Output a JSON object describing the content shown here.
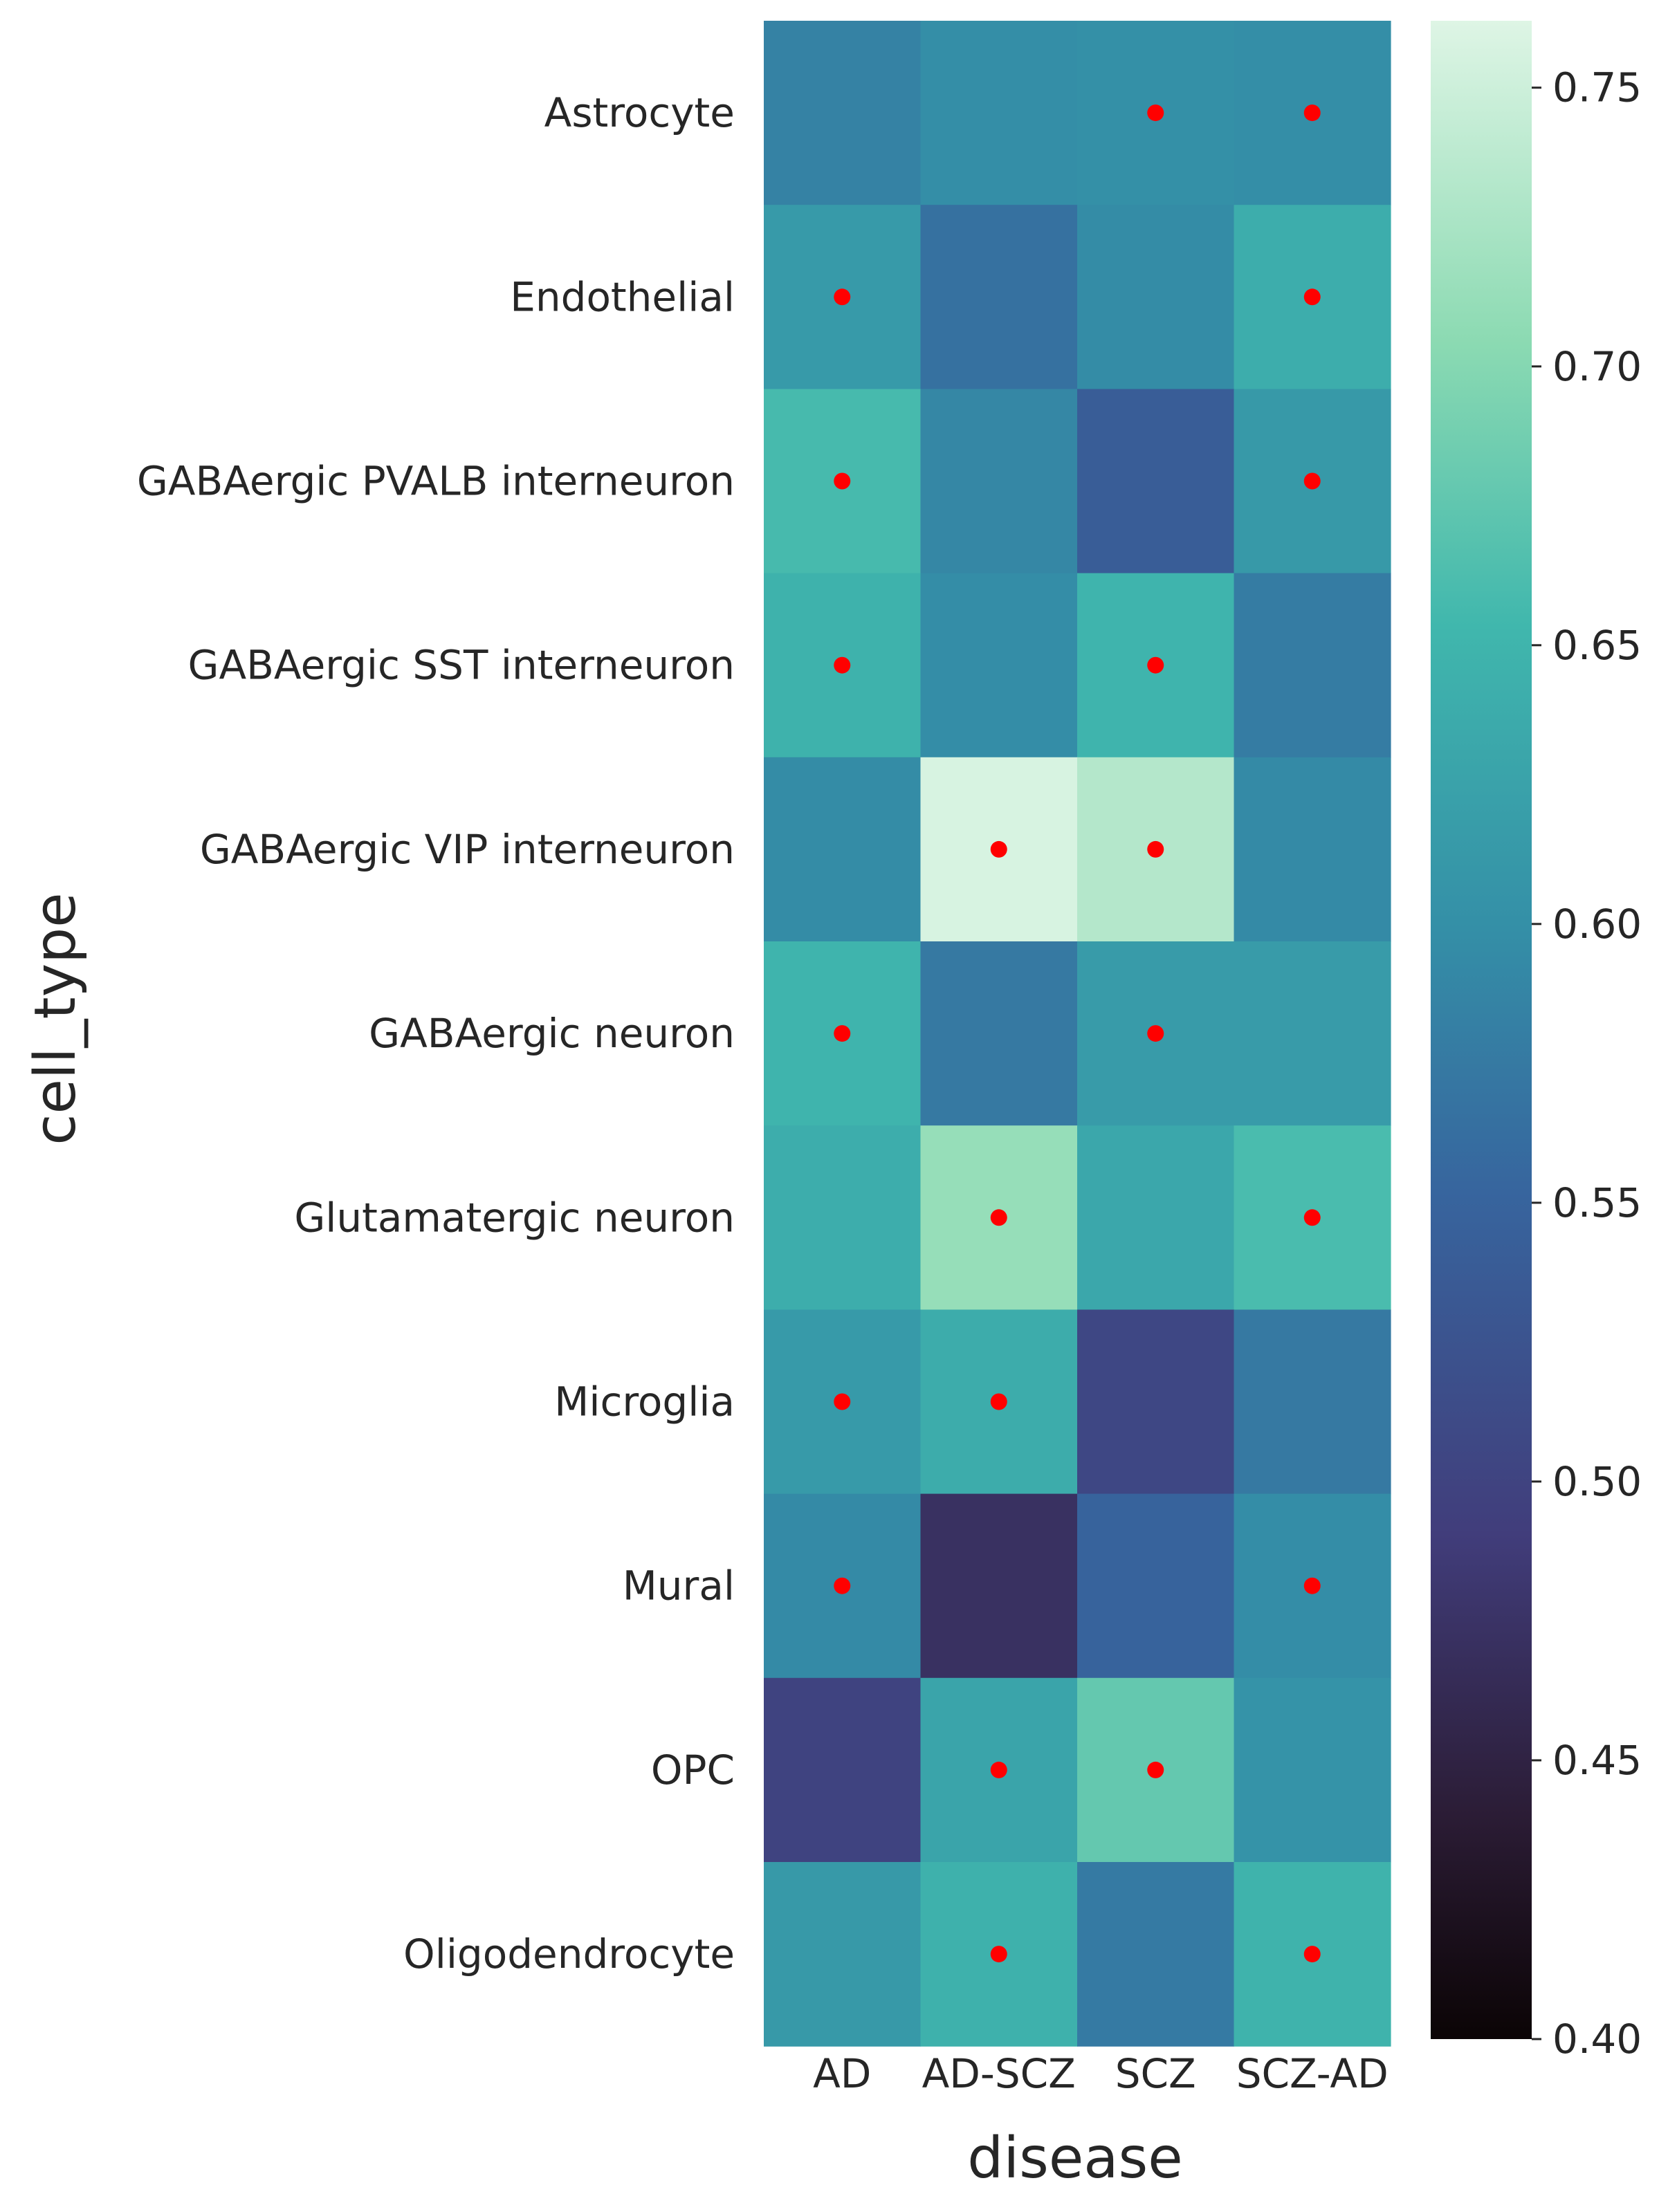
{
  "chart_data": {
    "type": "heatmap",
    "xlabel": "disease",
    "ylabel": "cell_type",
    "x_categories": [
      "AD",
      "AD-SCZ",
      "SCZ",
      "SCZ-AD"
    ],
    "y_categories": [
      "Astrocyte",
      "Endothelial",
      "GABAergic PVALB interneuron",
      "GABAergic SST interneuron",
      "GABAergic VIP interneuron",
      "GABAergic neuron",
      "Glutamatergic neuron",
      "Microglia",
      "Mural",
      "OPC",
      "Oligodendrocyte"
    ],
    "values": [
      [
        0.585,
        0.598,
        0.601,
        0.598
      ],
      [
        0.614,
        0.565,
        0.596,
        0.64
      ],
      [
        0.658,
        0.59,
        0.54,
        0.612
      ],
      [
        0.646,
        0.597,
        0.65,
        0.578
      ],
      [
        0.596,
        0.757,
        0.733,
        0.593
      ],
      [
        0.65,
        0.575,
        0.616,
        0.616
      ],
      [
        0.64,
        0.712,
        0.632,
        0.66
      ],
      [
        0.614,
        0.638,
        0.506,
        0.574
      ],
      [
        0.593,
        0.472,
        0.549,
        0.597
      ],
      [
        0.5,
        0.627,
        0.678,
        0.604
      ],
      [
        0.612,
        0.645,
        0.576,
        0.648
      ]
    ],
    "markers": [
      [
        false,
        false,
        true,
        true
      ],
      [
        true,
        false,
        false,
        true
      ],
      [
        true,
        false,
        false,
        true
      ],
      [
        true,
        false,
        true,
        false
      ],
      [
        false,
        true,
        true,
        false
      ],
      [
        true,
        false,
        true,
        false
      ],
      [
        false,
        true,
        false,
        true
      ],
      [
        true,
        true,
        false,
        false
      ],
      [
        true,
        false,
        false,
        true
      ],
      [
        false,
        true,
        true,
        false
      ],
      [
        false,
        true,
        false,
        true
      ]
    ],
    "marker_color": "#ff0000",
    "colormap": "mako",
    "colorbar": {
      "vmin": 0.4,
      "vmax": 0.762,
      "ticks": [
        0.4,
        0.45,
        0.5,
        0.55,
        0.6,
        0.65,
        0.7,
        0.75
      ],
      "tick_labels": [
        "0.40",
        "0.45",
        "0.50",
        "0.55",
        "0.60",
        "0.65",
        "0.70",
        "0.75"
      ]
    }
  }
}
